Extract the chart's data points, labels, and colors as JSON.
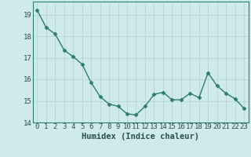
{
  "x": [
    0,
    1,
    2,
    3,
    4,
    5,
    6,
    7,
    8,
    9,
    10,
    11,
    12,
    13,
    14,
    15,
    16,
    17,
    18,
    19,
    20,
    21,
    22,
    23
  ],
  "y": [
    19.2,
    18.4,
    18.1,
    17.35,
    17.05,
    16.7,
    15.85,
    15.2,
    14.85,
    14.75,
    14.4,
    14.35,
    14.75,
    15.3,
    15.4,
    15.05,
    15.05,
    15.35,
    15.15,
    16.3,
    15.7,
    15.35,
    15.1,
    14.65
  ],
  "line_color": "#2e7d6e",
  "marker": "D",
  "marker_size": 2.5,
  "background_color": "#ceeaea",
  "grid_color": "#b8d4d4",
  "xlabel": "Humidex (Indice chaleur)",
  "ylim": [
    14,
    19.6
  ],
  "xlim": [
    -0.5,
    23.5
  ],
  "yticks": [
    14,
    15,
    16,
    17,
    18,
    19
  ],
  "xticks": [
    0,
    1,
    2,
    3,
    4,
    5,
    6,
    7,
    8,
    9,
    10,
    11,
    12,
    13,
    14,
    15,
    16,
    17,
    18,
    19,
    20,
    21,
    22,
    23
  ],
  "xlabel_fontsize": 7.5,
  "tick_fontsize": 6.5,
  "line_width": 1.0,
  "spine_color": "#2e7d6e"
}
